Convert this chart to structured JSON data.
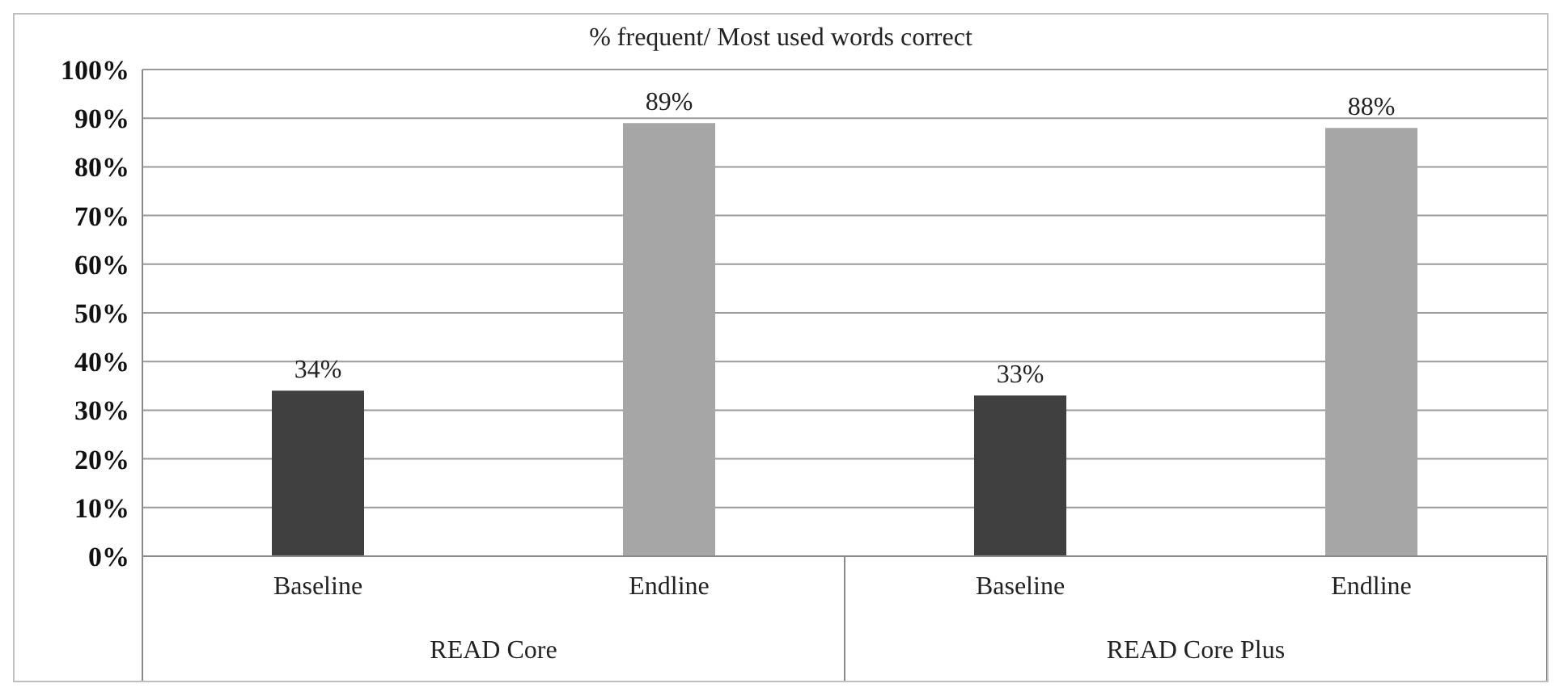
{
  "chart_data": {
    "type": "bar",
    "title": "% frequent/ Most used words correct",
    "categories": [
      "Baseline",
      "Endline",
      "Baseline",
      "Endline"
    ],
    "values": [
      34,
      89,
      33,
      88
    ],
    "colors": [
      "#404040",
      "#a6a6a6",
      "#404040",
      "#a6a6a6"
    ],
    "value_labels": [
      "34%",
      "89%",
      "33%",
      "88%"
    ],
    "annotations": [
      "READ Core",
      "READ Core Plus"
    ],
    "ylim": [
      0,
      100
    ],
    "yticks": [
      {
        "value": 0,
        "label": "0%"
      },
      {
        "value": 10,
        "label": "10%"
      },
      {
        "value": 20,
        "label": "20%"
      },
      {
        "value": 30,
        "label": "30%"
      },
      {
        "value": 40,
        "label": "40%"
      },
      {
        "value": 50,
        "label": "50%"
      },
      {
        "value": 60,
        "label": "60%"
      },
      {
        "value": 70,
        "label": "70%"
      },
      {
        "value": 80,
        "label": "80%"
      },
      {
        "value": 90,
        "label": "90%"
      },
      {
        "value": 100,
        "label": "100%"
      }
    ],
    "grid": "y",
    "legend": false
  }
}
